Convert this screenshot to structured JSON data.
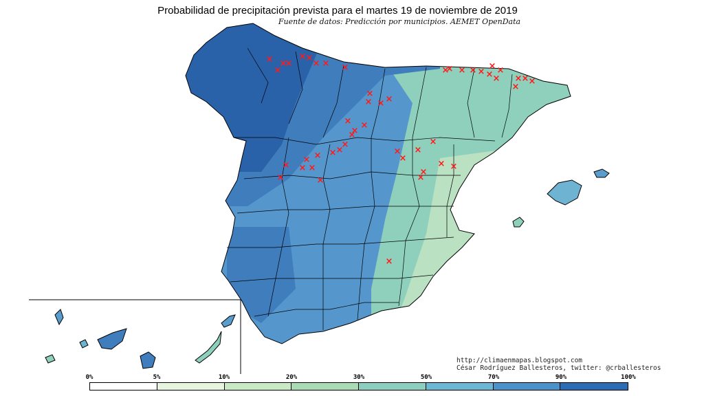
{
  "title": "Probabilidad de precipitación prevista para el martes 19 de noviembre de 2019",
  "subtitle": "Fuente de datos: Predicción por municipios. AEMET OpenData",
  "credits": {
    "url": "http://climaenmapas.blogspot.com",
    "author": "César Rodríguez Ballesteros, twitter: @crballesteros"
  },
  "legend": {
    "ticks": [
      "0%",
      "5%",
      "10%",
      "20%",
      "30%",
      "50%",
      "70%",
      "90%",
      "100%"
    ],
    "colors": [
      "#ffffff",
      "#e6f4e0",
      "#c9eac4",
      "#a9dcb4",
      "#8ccfbf",
      "#6cb7d3",
      "#4a92c8",
      "#2c6cb2"
    ]
  },
  "map_colors": {
    "northwest": "#2a62aa",
    "north": "#3f7dbd",
    "center": "#5597cc",
    "east": "#8fd0bd",
    "southeast": "#b9e1c2",
    "mallorca": "#6fb3d2",
    "canarias": "#5a9ccc"
  },
  "markers": {
    "symbol": "×",
    "color": "#ff1a1a"
  }
}
